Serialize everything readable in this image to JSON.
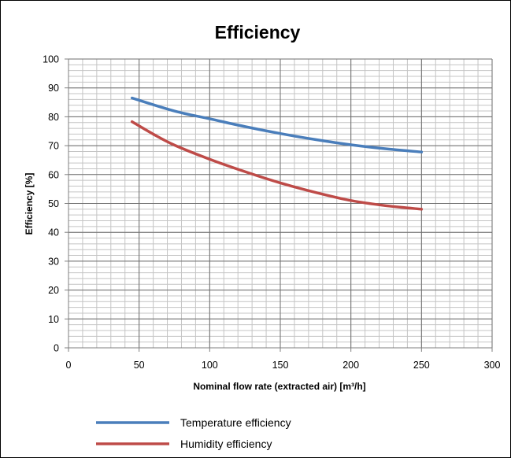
{
  "chart_data": {
    "type": "line",
    "title": "Efficiency",
    "xlabel": "Nominal flow rate (extracted air) [m³/h]",
    "ylabel": "Efficiency [%]",
    "xlim": [
      0,
      300
    ],
    "ylim": [
      0,
      100
    ],
    "xticks": [
      0,
      50,
      100,
      150,
      200,
      250,
      300
    ],
    "yticks": [
      0,
      10,
      20,
      30,
      40,
      50,
      60,
      70,
      80,
      90,
      100
    ],
    "grid": true,
    "legend_position": "bottom",
    "series": [
      {
        "name": "Temperature efficiency",
        "color": "#4a7ebb",
        "x": [
          45,
          75,
          100,
          125,
          150,
          175,
          200,
          225,
          250
        ],
        "y": [
          86.5,
          82,
          79.3,
          76.6,
          74.2,
          72.1,
          70.3,
          68.9,
          67.8
        ]
      },
      {
        "name": "Humidity efficiency",
        "color": "#be4b48",
        "x": [
          45,
          60,
          75,
          100,
          125,
          150,
          175,
          200,
          225,
          250
        ],
        "y": [
          78.3,
          74,
          70.2,
          65.3,
          61,
          57.1,
          53.8,
          51,
          49.2,
          48
        ]
      }
    ]
  }
}
